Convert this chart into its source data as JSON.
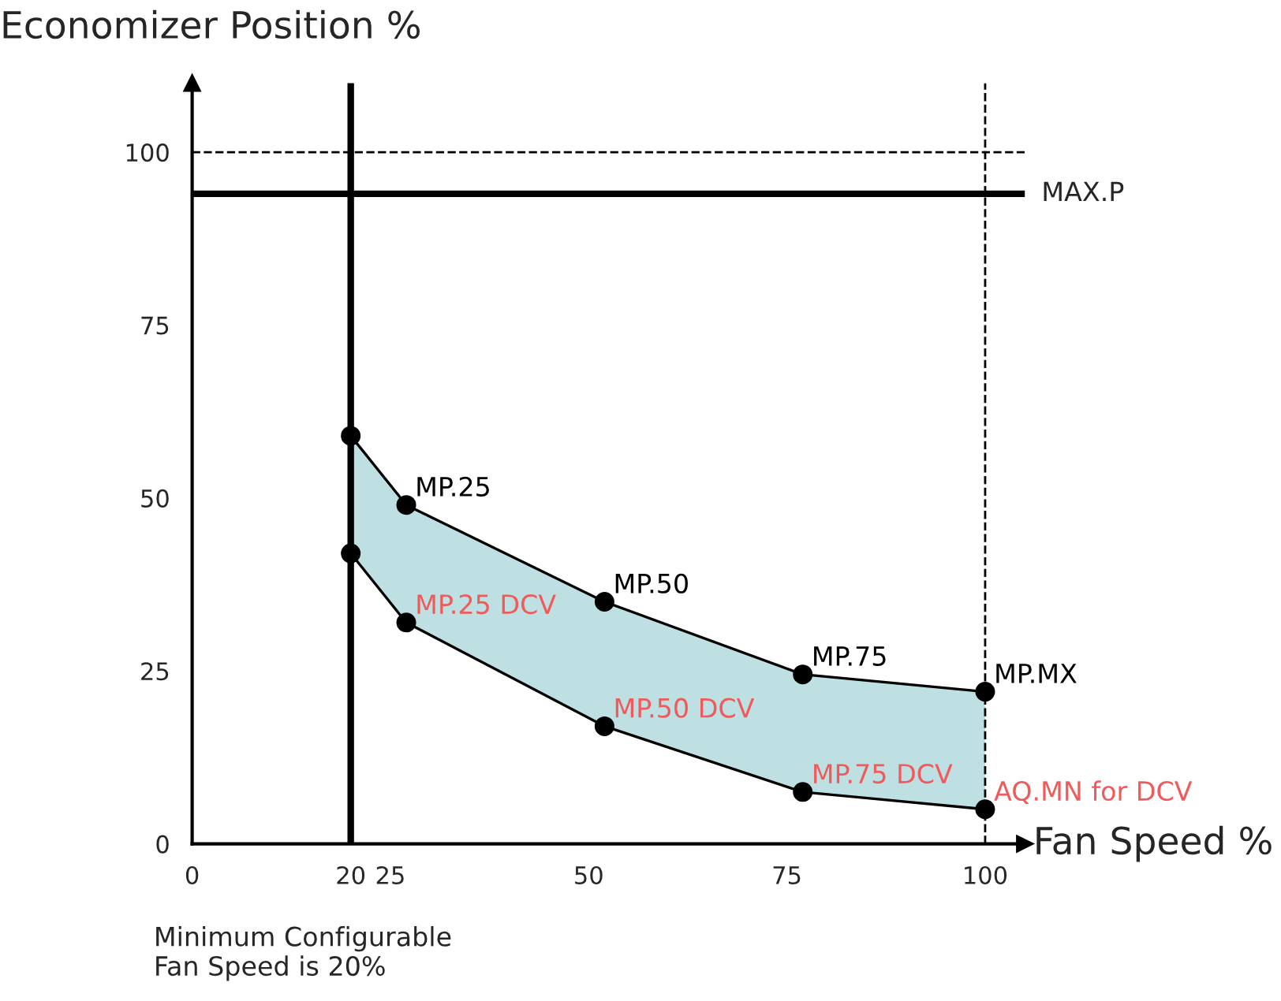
{
  "chart_data": {
    "type": "line",
    "xlabel": "Fan Speed %",
    "ylabel": "Economizer Position %",
    "x": [
      20,
      27,
      52,
      77,
      100
    ],
    "series": [
      {
        "color": "#000000",
        "values": [
          59,
          49,
          35,
          24.5,
          22
        ],
        "lower": [
          42,
          32,
          17,
          7.5,
          5
        ],
        "upper": [
          59,
          49,
          35,
          24.5,
          22
        ],
        "value_labels": [
          null,
          "MP.25",
          "MP.50",
          "MP.75",
          "MP.MX"
        ]
      },
      {
        "color": "#000000",
        "values": [
          42,
          32,
          17,
          7.5,
          5
        ],
        "value_labels": [
          null,
          "MP.25 DCV",
          "MP.50 DCV",
          "MP.75 DCV",
          "AQ.MN for DCV"
        ]
      }
    ],
    "marker": "circle",
    "line_style": "solid",
    "xlim": [
      0,
      105
    ],
    "ylim": [
      0,
      110
    ],
    "xticks": [
      0,
      20,
      25,
      50,
      75,
      100
    ],
    "yticks": [
      0,
      25,
      50,
      75,
      100
    ],
    "grid": false,
    "legend": false,
    "ref_lines": [
      {
        "axis": "y",
        "value": 94,
        "label": "MAX.P",
        "color": "#000000",
        "line_style": "solid"
      },
      {
        "axis": "x",
        "value": 20,
        "label": null,
        "color": "#000000",
        "line_style": "solid"
      },
      {
        "axis": "y",
        "value": 100,
        "label": null,
        "color": "#000000",
        "line_style": "dashed"
      },
      {
        "axis": "x",
        "value": 100,
        "label": null,
        "color": "#000000",
        "line_style": "dashed"
      }
    ],
    "annotations": [
      "Minimum Configurable\nFan Speed is 20%"
    ]
  }
}
